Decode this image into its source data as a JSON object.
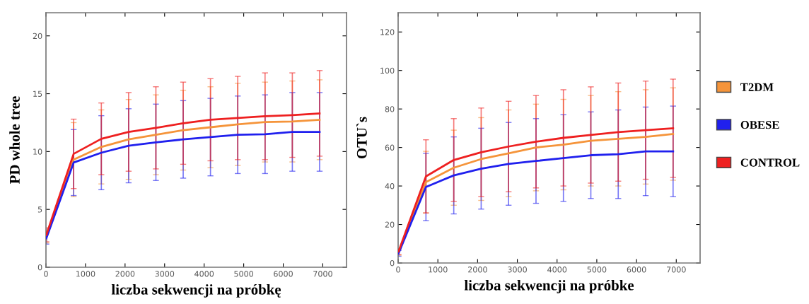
{
  "chart_data": [
    {
      "type": "line",
      "xlabel": "liczba sekwencji na próbkę",
      "ylabel": "PD whole tree",
      "x": [
        10,
        700,
        1400,
        2090,
        2780,
        3470,
        4160,
        4850,
        5540,
        6230,
        6920
      ],
      "xlim": [
        0,
        7600
      ],
      "xticks": [
        0,
        1000,
        2000,
        3000,
        4000,
        5000,
        6000,
        7000
      ],
      "ylim": [
        0,
        22
      ],
      "yticks": [
        0,
        5,
        10,
        15,
        20
      ],
      "grid": false,
      "marker": "none",
      "line_style": "solid",
      "series": [
        {
          "color": "#f5943a",
          "values": [
            2.6,
            9.3,
            10.4,
            11.05,
            11.45,
            11.85,
            12.1,
            12.35,
            12.55,
            12.6,
            12.75
          ],
          "errors": [
            0.5,
            3.2,
            3.2,
            3.45,
            3.45,
            3.45,
            3.5,
            3.55,
            3.45,
            3.5,
            3.45
          ]
        },
        {
          "color": "#2020ee",
          "values": [
            2.5,
            9.05,
            9.9,
            10.5,
            10.8,
            11.05,
            11.25,
            11.45,
            11.5,
            11.7,
            11.7
          ],
          "errors": [
            0.5,
            2.85,
            3.2,
            3.2,
            3.3,
            3.35,
            3.35,
            3.35,
            3.4,
            3.4,
            3.4
          ]
        },
        {
          "color": "#ee2020",
          "values": [
            2.8,
            9.8,
            11.1,
            11.7,
            12.05,
            12.45,
            12.75,
            12.9,
            13.05,
            13.15,
            13.3
          ],
          "errors": [
            0.6,
            3.0,
            3.1,
            3.4,
            3.55,
            3.55,
            3.55,
            3.6,
            3.75,
            3.65,
            3.7
          ]
        }
      ]
    },
    {
      "type": "line",
      "xlabel": "liczba sekwencji na próbke",
      "ylabel": "OTU`s",
      "x": [
        10,
        700,
        1400,
        2090,
        2780,
        3470,
        4160,
        4850,
        5540,
        6230,
        6920
      ],
      "xlim": [
        0,
        7600
      ],
      "xticks": [
        0,
        1000,
        2000,
        3000,
        4000,
        5000,
        6000,
        7000
      ],
      "ylim": [
        0,
        130
      ],
      "yticks": [
        0,
        20,
        40,
        60,
        80,
        100,
        120
      ],
      "grid": false,
      "marker": "none",
      "line_style": "solid",
      "legend": "right",
      "series": [
        {
          "name": "T2DM",
          "color": "#f5943a",
          "values": [
            5.5,
            42,
            49.5,
            54,
            57,
            60,
            61.5,
            63.5,
            64.5,
            65.5,
            67
          ],
          "errors": [
            1.5,
            16,
            19.5,
            21.5,
            22.5,
            22.5,
            23.5,
            23.5,
            24.5,
            24.5,
            24
          ]
        },
        {
          "name": "OBESE",
          "color": "#2020ee",
          "values": [
            5,
            39.5,
            45.5,
            49,
            51.5,
            53,
            54.5,
            56,
            56.5,
            58,
            58
          ],
          "errors": [
            1.5,
            17.5,
            20,
            21,
            21.5,
            22,
            22.5,
            22.5,
            23,
            23,
            23.5
          ]
        },
        {
          "name": "CONTROL",
          "color": "#ee2020",
          "values": [
            6,
            45,
            53.5,
            57.5,
            60.5,
            63,
            65,
            66.5,
            68,
            69,
            70
          ],
          "errors": [
            1.5,
            19,
            21.5,
            23,
            23.5,
            24,
            25,
            25,
            25.5,
            25.5,
            25.5
          ]
        }
      ]
    }
  ]
}
